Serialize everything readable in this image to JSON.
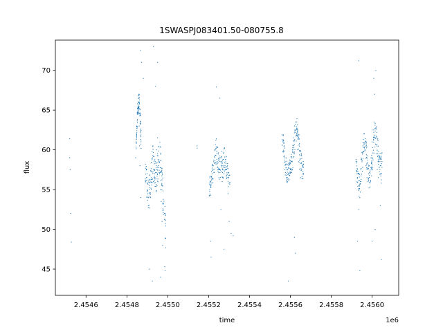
{
  "chart_data": {
    "type": "scatter",
    "title": "1SWASPJ083401.50-080755.8",
    "xlabel": "time",
    "ylabel": "flux",
    "x_offset_label": "1e6",
    "xlim": [
      2454450,
      2456130
    ],
    "ylim": [
      41.7,
      73.8
    ],
    "x_ticks": [
      {
        "value": 2454600,
        "label": "2.4546"
      },
      {
        "value": 2454800,
        "label": "2.4548"
      },
      {
        "value": 2455000,
        "label": "2.4550"
      },
      {
        "value": 2455200,
        "label": "2.4552"
      },
      {
        "value": 2455400,
        "label": "2.4554"
      },
      {
        "value": 2455600,
        "label": "2.4556"
      },
      {
        "value": 2455800,
        "label": "2.4558"
      },
      {
        "value": 2456000,
        "label": "2.4560"
      }
    ],
    "y_ticks": [
      {
        "value": 45,
        "label": "45"
      },
      {
        "value": 50,
        "label": "50"
      },
      {
        "value": 55,
        "label": "55"
      },
      {
        "value": 60,
        "label": "60"
      },
      {
        "value": 65,
        "label": "65"
      },
      {
        "value": 70,
        "label": "70"
      }
    ],
    "grid": false,
    "marker_color": "#1f77b4",
    "series": [
      {
        "points": [
          [
            2454520,
            61.4
          ],
          [
            2454520,
            59.0
          ],
          [
            2454522,
            57.5
          ],
          [
            2454525,
            52.0
          ],
          [
            2454528,
            48.4
          ],
          [
            2454843,
            59.0
          ],
          [
            2454845,
            61.0
          ],
          [
            2454848,
            63.0
          ],
          [
            2454850,
            64.5
          ],
          [
            2454852,
            65.8
          ],
          [
            2454855,
            66.8
          ],
          [
            2454858,
            65.5
          ],
          [
            2454860,
            63.0
          ],
          [
            2454862,
            60.5
          ],
          [
            2454864,
            58.0
          ],
          [
            2454867,
            54.0
          ],
          [
            2454866,
            72.5
          ],
          [
            2454872,
            71.0
          ],
          [
            2454880,
            69.0
          ],
          [
            2454895,
            57.5
          ],
          [
            2454900,
            55.0
          ],
          [
            2454905,
            53.0
          ],
          [
            2454910,
            52.7
          ],
          [
            2454915,
            54.0
          ],
          [
            2454920,
            56.5
          ],
          [
            2454925,
            59.0
          ],
          [
            2454930,
            56.0
          ],
          [
            2454935,
            57.0
          ],
          [
            2454940,
            58.5
          ],
          [
            2454945,
            60.0
          ],
          [
            2454950,
            61.5
          ],
          [
            2454955,
            58.0
          ],
          [
            2454960,
            57.0
          ],
          [
            2454965,
            55.0
          ],
          [
            2454968,
            53.5
          ],
          [
            2454972,
            51.0
          ],
          [
            2454975,
            48.0
          ],
          [
            2454930,
            73.0
          ],
          [
            2454940,
            68.0
          ],
          [
            2454950,
            71.0
          ],
          [
            2454910,
            45.0
          ],
          [
            2454925,
            43.5
          ],
          [
            2454965,
            44.0
          ],
          [
            2454985,
            45.3
          ],
          [
            2454987,
            44.8
          ],
          [
            2455143,
            60.5
          ],
          [
            2455144,
            60.2
          ],
          [
            2455205,
            55.0
          ],
          [
            2455210,
            54.3
          ],
          [
            2455215,
            55.8
          ],
          [
            2455220,
            57.0
          ],
          [
            2455225,
            58.5
          ],
          [
            2455230,
            60.0
          ],
          [
            2455235,
            61.2
          ],
          [
            2455240,
            59.5
          ],
          [
            2455245,
            57.5
          ],
          [
            2455250,
            56.5
          ],
          [
            2455255,
            57.5
          ],
          [
            2455260,
            58.5
          ],
          [
            2455265,
            59.8
          ],
          [
            2455270,
            58.0
          ],
          [
            2455275,
            57.0
          ],
          [
            2455280,
            58.0
          ],
          [
            2455285,
            57.5
          ],
          [
            2455290,
            56.5
          ],
          [
            2455295,
            54.5
          ],
          [
            2455210,
            48.5
          ],
          [
            2455212,
            46.5
          ],
          [
            2455238,
            67.9
          ],
          [
            2455255,
            66.5
          ],
          [
            2455300,
            51.0
          ],
          [
            2455310,
            49.5
          ],
          [
            2455320,
            49.2
          ],
          [
            2455260,
            52.5
          ],
          [
            2455275,
            47.5
          ],
          [
            2455565,
            61.8
          ],
          [
            2455570,
            60.5
          ],
          [
            2455575,
            58.5
          ],
          [
            2455580,
            57.0
          ],
          [
            2455585,
            56.5
          ],
          [
            2455590,
            57.0
          ],
          [
            2455595,
            56.8
          ],
          [
            2455600,
            57.5
          ],
          [
            2455605,
            58.5
          ],
          [
            2455610,
            60.0
          ],
          [
            2455615,
            61.5
          ],
          [
            2455620,
            63.0
          ],
          [
            2455625,
            63.5
          ],
          [
            2455630,
            62.0
          ],
          [
            2455635,
            60.0
          ],
          [
            2455640,
            58.5
          ],
          [
            2455645,
            57.5
          ],
          [
            2455650,
            56.5
          ],
          [
            2455655,
            57.5
          ],
          [
            2455660,
            58.0
          ],
          [
            2455590,
            43.5
          ],
          [
            2455625,
            47.0
          ],
          [
            2455620,
            49.0
          ],
          [
            2455925,
            58.5
          ],
          [
            2455930,
            57.0
          ],
          [
            2455935,
            55.5
          ],
          [
            2455940,
            54.0
          ],
          [
            2455945,
            56.0
          ],
          [
            2455950,
            58.5
          ],
          [
            2455955,
            60.5
          ],
          [
            2455960,
            62.0
          ],
          [
            2455965,
            60.0
          ],
          [
            2455970,
            58.0
          ],
          [
            2455975,
            56.5
          ],
          [
            2455980,
            56.0
          ],
          [
            2455985,
            55.2
          ],
          [
            2455990,
            57.0
          ],
          [
            2455995,
            59.0
          ],
          [
            2456000,
            61.0
          ],
          [
            2456005,
            62.5
          ],
          [
            2456010,
            63.5
          ],
          [
            2456015,
            61.5
          ],
          [
            2456020,
            59.5
          ],
          [
            2456025,
            57.5
          ],
          [
            2456030,
            56.5
          ],
          [
            2456035,
            59.0
          ],
          [
            2456040,
            58.0
          ],
          [
            2456045,
            55.8
          ],
          [
            2455928,
            48.5
          ],
          [
            2455935,
            71.2
          ],
          [
            2455940,
            44.8
          ],
          [
            2455935,
            52.5
          ],
          [
            2456008,
            69.0
          ],
          [
            2456012,
            67.0
          ],
          [
            2456018,
            70.0
          ],
          [
            2456000,
            48.5
          ],
          [
            2456015,
            50.0
          ],
          [
            2456045,
            46.2
          ],
          [
            2456040,
            53.0
          ]
        ],
        "tracks": [
          {
            "x": [
              2454845,
              2454870
            ],
            "y": [
              [
                59.0,
                61.0
              ],
              [
                61.5,
                63.5
              ],
              [
                63.5,
                65.5
              ],
              [
                64.5,
                66.5
              ],
              [
                65.0,
                67.2
              ],
              [
                64.0,
                66.0
              ],
              [
                62.0,
                64.5
              ],
              [
                59.5,
                62.0
              ]
            ]
          },
          {
            "x": [
              2454890,
              2454990
            ],
            "y": [
              [
                56.0,
                59.0
              ],
              [
                54.0,
                57.5
              ],
              [
                52.5,
                56.0
              ],
              [
                53.0,
                57.0
              ],
              [
                55.0,
                59.5
              ],
              [
                57.0,
                61.5
              ],
              [
                55.5,
                59.0
              ],
              [
                54.5,
                58.5
              ],
              [
                55.5,
                60.0
              ],
              [
                57.5,
                62.0
              ],
              [
                55.0,
                60.0
              ],
              [
                52.5,
                57.5
              ],
              [
                50.0,
                55.0
              ],
              [
                47.5,
                52.0
              ]
            ]
          },
          {
            "x": [
              2455200,
              2455305
            ],
            "y": [
              [
                54.0,
                56.0
              ],
              [
                54.5,
                57.0
              ],
              [
                55.5,
                58.5
              ],
              [
                57.0,
                60.0
              ],
              [
                58.5,
                61.5
              ],
              [
                57.0,
                60.5
              ],
              [
                55.5,
                59.0
              ],
              [
                56.0,
                59.5
              ],
              [
                57.0,
                60.5
              ],
              [
                56.5,
                59.5
              ],
              [
                55.5,
                58.5
              ],
              [
                53.5,
                57.0
              ]
            ]
          },
          {
            "x": [
              2455560,
              2455665
            ],
            "y": [
              [
                60.5,
                63.0
              ],
              [
                58.5,
                61.5
              ],
              [
                56.5,
                59.5
              ],
              [
                55.8,
                58.5
              ],
              [
                56.0,
                58.8
              ],
              [
                56.5,
                59.0
              ],
              [
                57.0,
                60.0
              ],
              [
                58.5,
                61.5
              ],
              [
                60.5,
                63.5
              ],
              [
                61.5,
                64.0
              ],
              [
                59.5,
                62.5
              ],
              [
                57.5,
                60.5
              ],
              [
                56.0,
                59.0
              ],
              [
                56.5,
                59.0
              ]
            ]
          },
          {
            "x": [
              2455920,
              2456050
            ],
            "y": [
              [
                57.5,
                59.0
              ],
              [
                55.0,
                58.0
              ],
              [
                53.5,
                57.0
              ],
              [
                55.5,
                59.0
              ],
              [
                58.0,
                61.0
              ],
              [
                60.0,
                62.5
              ],
              [
                58.0,
                61.0
              ],
              [
                56.0,
                59.0
              ],
              [
                55.0,
                57.5
              ],
              [
                56.5,
                59.5
              ],
              [
                59.0,
                62.0
              ],
              [
                61.0,
                63.8
              ],
              [
                59.5,
                62.5
              ],
              [
                57.0,
                60.0
              ],
              [
                56.0,
                59.5
              ],
              [
                55.5,
                60.0
              ]
            ]
          }
        ]
      }
    ]
  }
}
